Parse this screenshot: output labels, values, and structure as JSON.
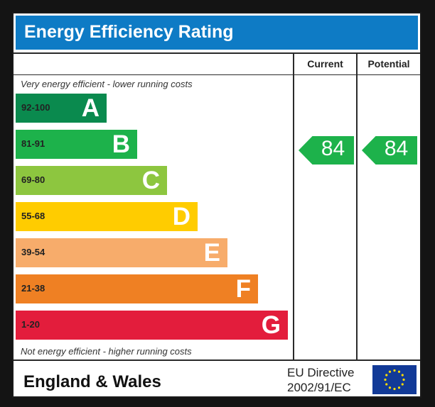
{
  "chart_data": {
    "type": "bar",
    "title": "Energy Efficiency Rating",
    "columns": [
      "Current",
      "Potential"
    ],
    "top_note": "Very energy efficient - lower running costs",
    "bottom_note": "Not energy efficient - higher running costs",
    "bands": [
      {
        "range": "92-100",
        "letter": "A",
        "color": "#0a8a4e"
      },
      {
        "range": "81-91",
        "letter": "B",
        "color": "#1db24b"
      },
      {
        "range": "69-80",
        "letter": "C",
        "color": "#8dc63f"
      },
      {
        "range": "55-68",
        "letter": "D",
        "color": "#ffcc00"
      },
      {
        "range": "39-54",
        "letter": "E",
        "color": "#f7ac6b"
      },
      {
        "range": "21-38",
        "letter": "F",
        "color": "#ef8023"
      },
      {
        "range": "1-20",
        "letter": "G",
        "color": "#e31d3c"
      }
    ],
    "current": {
      "value": 84,
      "color": "#1db24b"
    },
    "potential": {
      "value": 84,
      "color": "#1db24b"
    }
  },
  "footer": {
    "region": "England & Wales",
    "directive_line1": "EU Directive",
    "directive_line2": "2002/91/EC",
    "flag_color": "#123a97",
    "star_color": "#ffdd00"
  }
}
